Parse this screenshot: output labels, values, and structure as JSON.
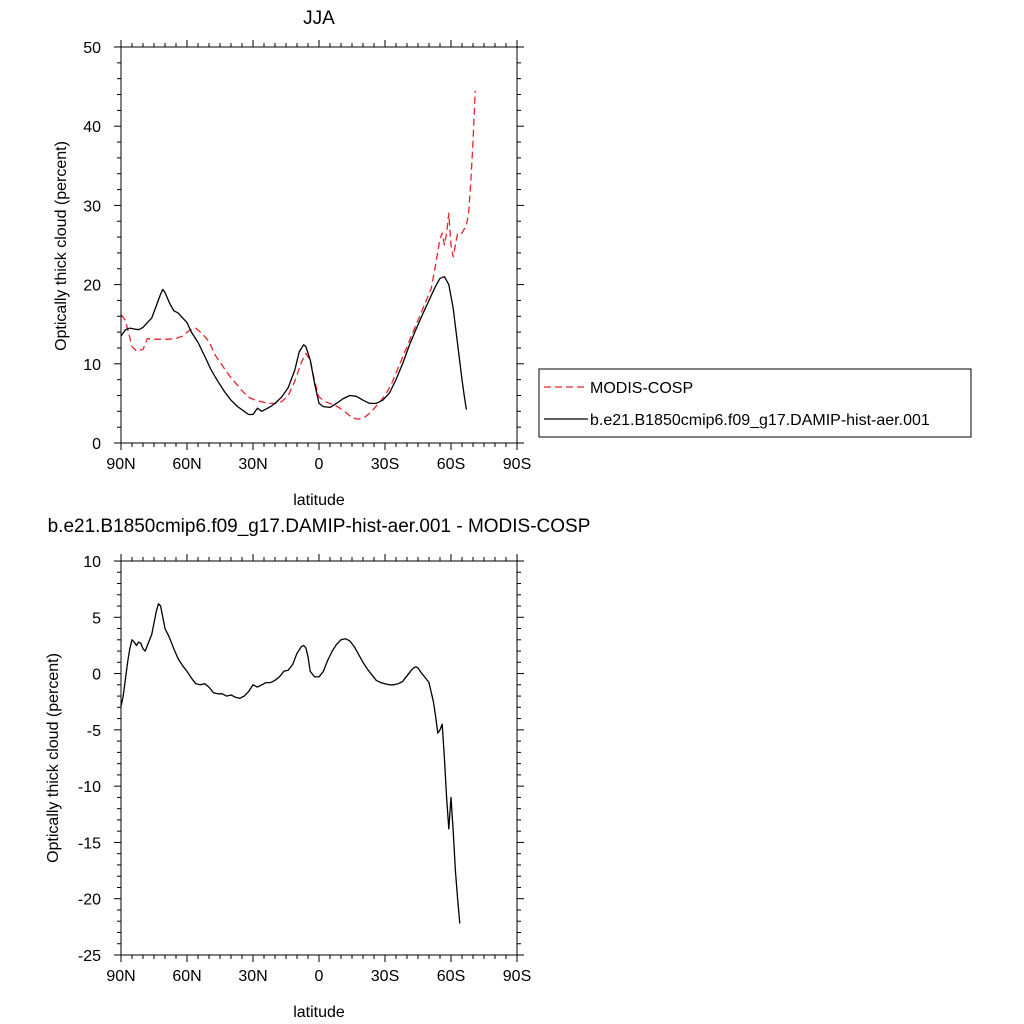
{
  "chart_data": [
    {
      "type": "line",
      "title": "JJA",
      "xlabel": "latitude",
      "ylabel": "Optically thick cloud (percent)",
      "xlim": [
        90,
        -90
      ],
      "ylim": [
        0,
        50
      ],
      "x_ticks": [
        90,
        60,
        30,
        0,
        -30,
        -60,
        -90
      ],
      "x_tick_labels": [
        "90N",
        "60N",
        "30N",
        "0",
        "30S",
        "60S",
        "90S"
      ],
      "y_ticks": [
        0,
        10,
        20,
        30,
        40,
        50
      ],
      "y_tick_labels": [
        "0",
        "10",
        "20",
        "30",
        "40",
        "50"
      ],
      "legend_position": "right",
      "series": [
        {
          "name": "MODIS-COSP",
          "color": "#e8232a",
          "dash": "dashed",
          "points": [
            [
              90,
              16.2
            ],
            [
              88,
              15.5
            ],
            [
              85,
              12.2
            ],
            [
              83,
              11.6
            ],
            [
              80,
              11.8
            ],
            [
              78,
              13.2
            ],
            [
              75,
              13.1
            ],
            [
              72,
              13.1
            ],
            [
              68,
              13.1
            ],
            [
              65,
              13.2
            ],
            [
              62,
              13.5
            ],
            [
              59,
              14.2
            ],
            [
              56,
              14.5
            ],
            [
              53,
              13.8
            ],
            [
              50,
              12.8
            ],
            [
              47,
              11.0
            ],
            [
              44,
              9.8
            ],
            [
              41,
              8.6
            ],
            [
              38,
              7.6
            ],
            [
              35,
              6.6
            ],
            [
              32,
              5.8
            ],
            [
              29,
              5.4
            ],
            [
              26,
              5.2
            ],
            [
              23,
              5.0
            ],
            [
              20,
              5.0
            ],
            [
              17,
              5.2
            ],
            [
              14,
              6.0
            ],
            [
              11,
              7.8
            ],
            [
              8,
              10.2
            ],
            [
              6,
              11.3
            ],
            [
              4,
              10.5
            ],
            [
              2,
              7.8
            ],
            [
              0,
              5.8
            ],
            [
              -3,
              5.2
            ],
            [
              -6,
              4.9
            ],
            [
              -9,
              4.5
            ],
            [
              -12,
              3.9
            ],
            [
              -15,
              3.2
            ],
            [
              -18,
              3.0
            ],
            [
              -21,
              3.3
            ],
            [
              -24,
              4.0
            ],
            [
              -27,
              5.0
            ],
            [
              -30,
              6.0
            ],
            [
              -33,
              7.5
            ],
            [
              -36,
              9.5
            ],
            [
              -39,
              11.5
            ],
            [
              -42,
              13.5
            ],
            [
              -45,
              15.5
            ],
            [
              -48,
              17.5
            ],
            [
              -51,
              19.5
            ],
            [
              -53,
              22.5
            ],
            [
              -55,
              25.8
            ],
            [
              -56,
              26.5
            ],
            [
              -57,
              25.0
            ],
            [
              -58,
              26.5
            ],
            [
              -59,
              29.0
            ],
            [
              -60,
              25.0
            ],
            [
              -61,
              23.5
            ],
            [
              -62,
              25.0
            ],
            [
              -63,
              26.5
            ],
            [
              -65,
              26.5
            ],
            [
              -67,
              27.5
            ],
            [
              -68,
              29.0
            ],
            [
              -69,
              33.0
            ],
            [
              -70,
              38.0
            ],
            [
              -71,
              44.5
            ]
          ]
        },
        {
          "name": "b.e21.B1850cmip6.f09_g17.DAMIP-hist-aer.001",
          "color": "#000000",
          "dash": "solid",
          "points": [
            [
              90,
              13.5
            ],
            [
              88,
              14.3
            ],
            [
              86,
              14.5
            ],
            [
              84,
              14.4
            ],
            [
              82,
              14.3
            ],
            [
              80,
              14.6
            ],
            [
              78,
              15.2
            ],
            [
              76,
              15.8
            ],
            [
              74,
              17.3
            ],
            [
              72,
              18.8
            ],
            [
              71,
              19.4
            ],
            [
              70,
              19.0
            ],
            [
              68,
              17.7
            ],
            [
              66,
              16.7
            ],
            [
              64,
              16.4
            ],
            [
              62,
              15.8
            ],
            [
              60,
              15.2
            ],
            [
              58,
              14.0
            ],
            [
              55,
              12.7
            ],
            [
              52,
              11.0
            ],
            [
              49,
              9.2
            ],
            [
              46,
              7.8
            ],
            [
              43,
              6.5
            ],
            [
              40,
              5.4
            ],
            [
              37,
              4.6
            ],
            [
              34,
              4.0
            ],
            [
              32,
              3.6
            ],
            [
              30,
              3.6
            ],
            [
              28,
              4.4
            ],
            [
              26,
              4.0
            ],
            [
              24,
              4.3
            ],
            [
              22,
              4.6
            ],
            [
              20,
              5.0
            ],
            [
              17,
              5.8
            ],
            [
              14,
              7.0
            ],
            [
              11,
              9.2
            ],
            [
              9,
              11.5
            ],
            [
              7,
              12.4
            ],
            [
              6,
              12.2
            ],
            [
              4,
              10.5
            ],
            [
              2,
              7.5
            ],
            [
              0,
              5.0
            ],
            [
              -2,
              4.6
            ],
            [
              -5,
              4.5
            ],
            [
              -8,
              5.0
            ],
            [
              -11,
              5.6
            ],
            [
              -14,
              6.0
            ],
            [
              -17,
              5.9
            ],
            [
              -20,
              5.4
            ],
            [
              -23,
              5.0
            ],
            [
              -26,
              5.0
            ],
            [
              -29,
              5.4
            ],
            [
              -32,
              6.3
            ],
            [
              -35,
              8.0
            ],
            [
              -38,
              10.0
            ],
            [
              -41,
              12.3
            ],
            [
              -44,
              14.3
            ],
            [
              -47,
              16.2
            ],
            [
              -50,
              18.0
            ],
            [
              -53,
              19.8
            ],
            [
              -55,
              20.8
            ],
            [
              -57,
              21.0
            ],
            [
              -59,
              20.0
            ],
            [
              -61,
              17.0
            ],
            [
              -63,
              12.5
            ],
            [
              -65,
              8.0
            ],
            [
              -66,
              6.0
            ],
            [
              -67,
              4.2
            ]
          ]
        }
      ]
    },
    {
      "type": "line",
      "title": "b.e21.B1850cmip6.f09_g17.DAMIP-hist-aer.001 - MODIS-COSP",
      "xlabel": "latitude",
      "ylabel": "Optically thick cloud (percent)",
      "xlim": [
        90,
        -90
      ],
      "ylim": [
        -25,
        10
      ],
      "x_ticks": [
        90,
        60,
        30,
        0,
        -30,
        -60,
        -90
      ],
      "x_tick_labels": [
        "90N",
        "60N",
        "30N",
        "0",
        "30S",
        "60S",
        "90S"
      ],
      "y_ticks": [
        10,
        5,
        0,
        -5,
        -10,
        -15,
        -20,
        -25
      ],
      "y_tick_labels": [
        "10",
        "5",
        "0",
        "-5",
        "-10",
        "-15",
        "-20",
        "-25"
      ],
      "series": [
        {
          "color": "#000000",
          "dash": "solid",
          "points": [
            [
              90,
              -2.9
            ],
            [
              89,
              -2.0
            ],
            [
              88,
              -0.5
            ],
            [
              87,
              1.0
            ],
            [
              86,
              2.2
            ],
            [
              85,
              3.0
            ],
            [
              84,
              2.8
            ],
            [
              83,
              2.5
            ],
            [
              82,
              2.8
            ],
            [
              81,
              2.7
            ],
            [
              80,
              2.2
            ],
            [
              79,
              2.0
            ],
            [
              78,
              2.5
            ],
            [
              77,
              3.0
            ],
            [
              76,
              3.5
            ],
            [
              75,
              4.5
            ],
            [
              74,
              5.5
            ],
            [
              73,
              6.2
            ],
            [
              72,
              6.0
            ],
            [
              71,
              5.0
            ],
            [
              70,
              4.0
            ],
            [
              68,
              3.2
            ],
            [
              66,
              2.2
            ],
            [
              64,
              1.3
            ],
            [
              62,
              0.7
            ],
            [
              60,
              0.2
            ],
            [
              58,
              -0.4
            ],
            [
              56,
              -0.9
            ],
            [
              54,
              -1.0
            ],
            [
              52,
              -0.9
            ],
            [
              50,
              -1.2
            ],
            [
              48,
              -1.7
            ],
            [
              46,
              -1.8
            ],
            [
              44,
              -1.8
            ],
            [
              42,
              -2.0
            ],
            [
              40,
              -1.9
            ],
            [
              38,
              -2.1
            ],
            [
              36,
              -2.2
            ],
            [
              34,
              -2.0
            ],
            [
              32,
              -1.6
            ],
            [
              30,
              -1.0
            ],
            [
              28,
              -1.2
            ],
            [
              26,
              -1.0
            ],
            [
              24,
              -0.8
            ],
            [
              22,
              -0.8
            ],
            [
              20,
              -0.6
            ],
            [
              18,
              -0.3
            ],
            [
              16,
              0.2
            ],
            [
              14,
              0.3
            ],
            [
              12,
              0.8
            ],
            [
              10,
              1.8
            ],
            [
              8,
              2.4
            ],
            [
              7,
              2.5
            ],
            [
              6,
              2.3
            ],
            [
              5,
              1.5
            ],
            [
              4,
              0.2
            ],
            [
              2,
              -0.3
            ],
            [
              0,
              -0.3
            ],
            [
              -2,
              0.2
            ],
            [
              -4,
              1.2
            ],
            [
              -6,
              2.0
            ],
            [
              -8,
              2.6
            ],
            [
              -10,
              3.0
            ],
            [
              -12,
              3.1
            ],
            [
              -14,
              2.9
            ],
            [
              -16,
              2.4
            ],
            [
              -18,
              1.7
            ],
            [
              -20,
              1.0
            ],
            [
              -22,
              0.4
            ],
            [
              -24,
              -0.1
            ],
            [
              -26,
              -0.6
            ],
            [
              -28,
              -0.8
            ],
            [
              -30,
              -0.9
            ],
            [
              -32,
              -1.0
            ],
            [
              -34,
              -1.0
            ],
            [
              -36,
              -0.9
            ],
            [
              -38,
              -0.7
            ],
            [
              -40,
              -0.2
            ],
            [
              -42,
              0.3
            ],
            [
              -43,
              0.5
            ],
            [
              -44,
              0.6
            ],
            [
              -45,
              0.5
            ],
            [
              -46,
              0.2
            ],
            [
              -48,
              -0.3
            ],
            [
              -50,
              -0.8
            ],
            [
              -52,
              -2.5
            ],
            [
              -53,
              -3.8
            ],
            [
              -54,
              -5.3
            ],
            [
              -55,
              -5.0
            ],
            [
              -56,
              -4.5
            ],
            [
              -57,
              -7.5
            ],
            [
              -58,
              -11.0
            ],
            [
              -59,
              -13.8
            ],
            [
              -60,
              -11.0
            ],
            [
              -61,
              -14.0
            ],
            [
              -62,
              -17.5
            ],
            [
              -63,
              -20.0
            ],
            [
              -64,
              -22.2
            ]
          ]
        }
      ]
    }
  ]
}
